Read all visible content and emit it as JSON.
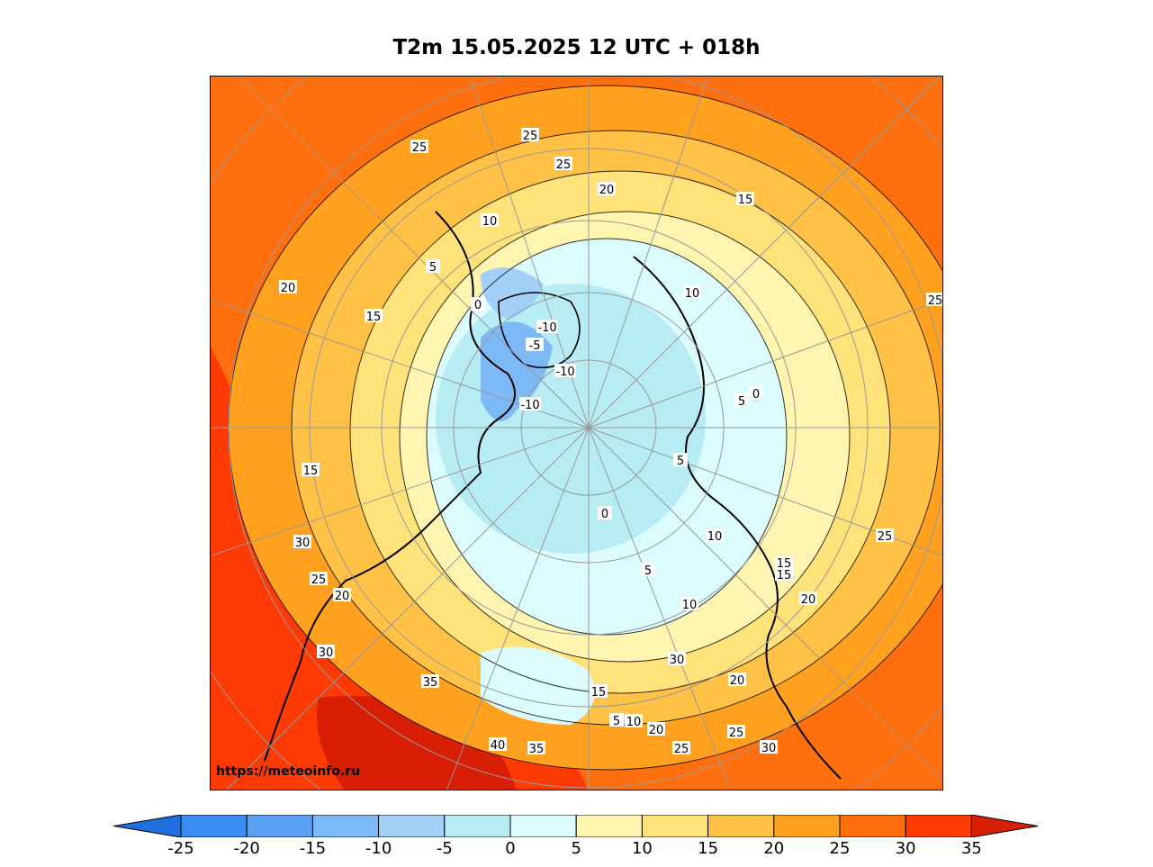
{
  "title": "T2m 15.05.2025 12 UTC + 018h",
  "watermark": "https://meteoinfo.ru",
  "colorbar": {
    "ticks": [
      "-25",
      "-20",
      "-15",
      "-10",
      "-5",
      "0",
      "5",
      "10",
      "15",
      "20",
      "25",
      "30",
      "35"
    ],
    "colors": [
      "#1f6fe0",
      "#3b8cf0",
      "#5aa2f4",
      "#7eb9f7",
      "#a3d0f9",
      "#b8ecf5",
      "#dcfbfd",
      "#fff5b0",
      "#ffe27a",
      "#ffc247",
      "#ffa11f",
      "#ff6f0d",
      "#ff3a05",
      "#d81e05"
    ]
  },
  "map": {
    "contour_labels": [
      "25",
      "25",
      "25",
      "25",
      "20",
      "20",
      "15",
      "15",
      "10",
      "10",
      "5",
      "5",
      "0",
      "0",
      "-5",
      "-10",
      "-10",
      "-10",
      "15",
      "20",
      "25",
      "30",
      "30",
      "35",
      "40",
      "35",
      "30",
      "25",
      "20",
      "15",
      "10",
      "5",
      "5",
      "10",
      "15",
      "20",
      "25",
      "30",
      "25",
      "20",
      "15",
      "10",
      "5",
      "0"
    ]
  }
}
